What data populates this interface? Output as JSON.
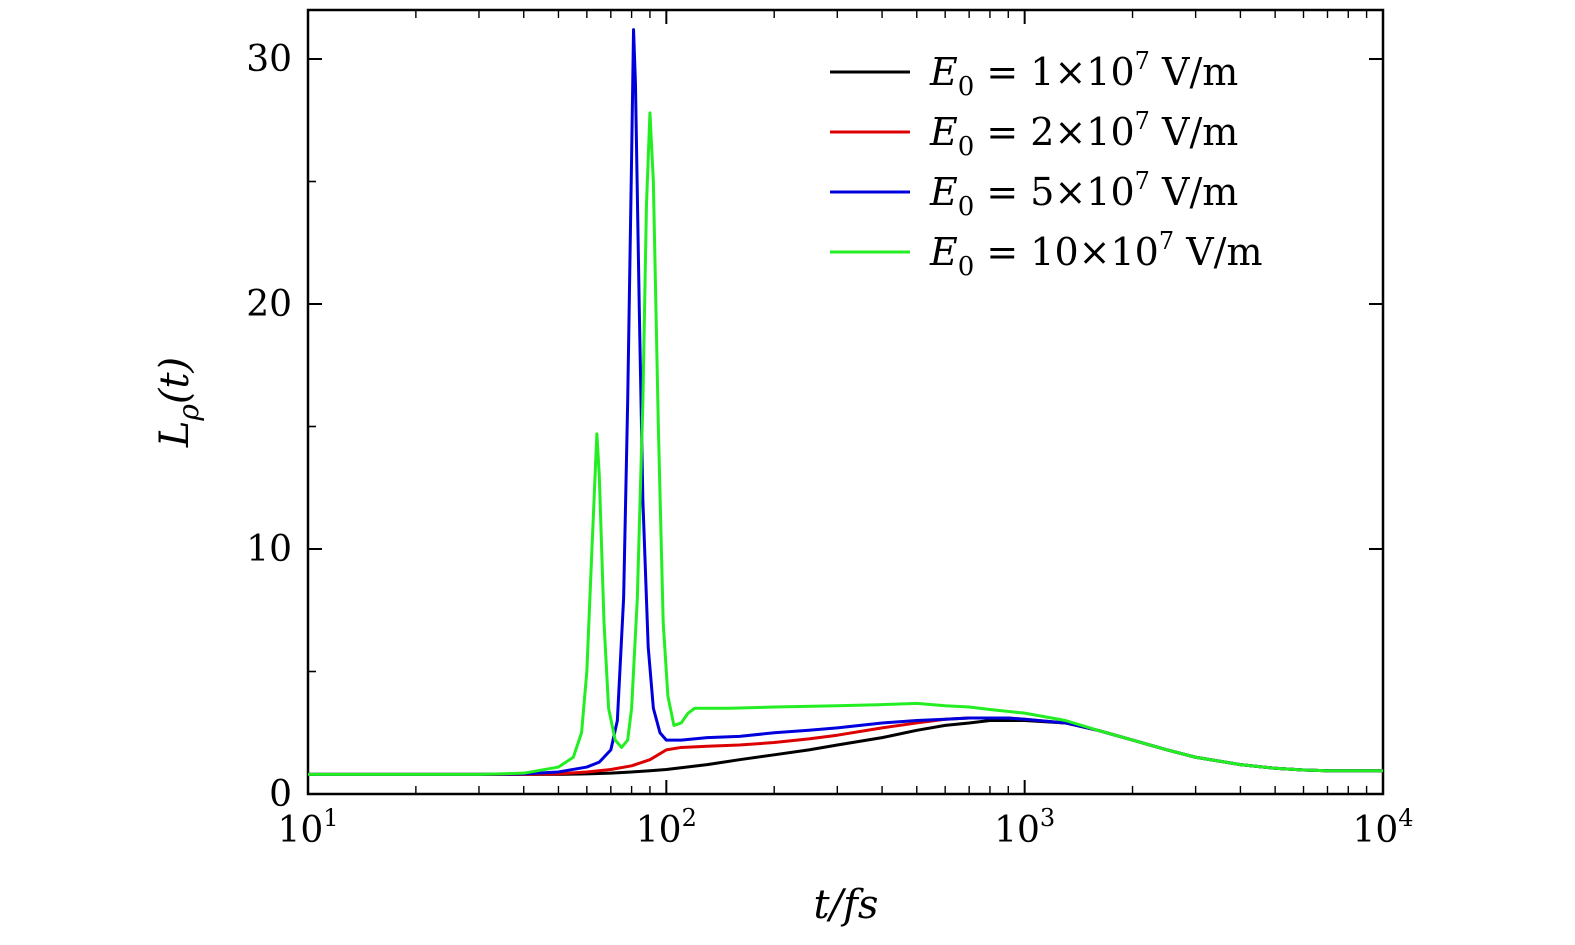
{
  "chart_data": {
    "type": "line",
    "xlabel": "t/fs",
    "ylabel": "Lρ(t)",
    "xscale": "log",
    "xlim": [
      10,
      10000
    ],
    "ylim": [
      0,
      32
    ],
    "yticks": [
      0,
      10,
      20,
      30
    ],
    "xticks": [
      {
        "value": 10,
        "base": "10",
        "exp": "1"
      },
      {
        "value": 100,
        "base": "10",
        "exp": "2"
      },
      {
        "value": 1000,
        "base": "10",
        "exp": "3"
      },
      {
        "value": 10000,
        "base": "10",
        "exp": "4"
      }
    ],
    "grid": false,
    "legend_position": "top-right",
    "series": [
      {
        "name": "E0 = 1×10^7 V/m",
        "label_parts": [
          "1",
          "7"
        ],
        "color": "#000000",
        "points": [
          [
            10,
            0.8
          ],
          [
            20,
            0.8
          ],
          [
            30,
            0.8
          ],
          [
            40,
            0.8
          ],
          [
            50,
            0.8
          ],
          [
            60,
            0.82
          ],
          [
            70,
            0.85
          ],
          [
            80,
            0.9
          ],
          [
            90,
            0.95
          ],
          [
            100,
            1.0
          ],
          [
            130,
            1.2
          ],
          [
            160,
            1.4
          ],
          [
            200,
            1.6
          ],
          [
            250,
            1.8
          ],
          [
            300,
            2.0
          ],
          [
            400,
            2.3
          ],
          [
            500,
            2.6
          ],
          [
            600,
            2.8
          ],
          [
            700,
            2.9
          ],
          [
            800,
            3.0
          ],
          [
            900,
            3.0
          ],
          [
            1000,
            3.0
          ],
          [
            1300,
            2.9
          ],
          [
            1600,
            2.6
          ],
          [
            2000,
            2.2
          ],
          [
            2500,
            1.8
          ],
          [
            3000,
            1.5
          ],
          [
            4000,
            1.2
          ],
          [
            5000,
            1.05
          ],
          [
            6000,
            0.98
          ],
          [
            7000,
            0.95
          ],
          [
            8000,
            0.95
          ],
          [
            10000,
            0.95
          ]
        ]
      },
      {
        "name": "E0 = 2×10^7 V/m",
        "label_parts": [
          "2",
          "7"
        ],
        "color": "#dd0000",
        "points": [
          [
            10,
            0.8
          ],
          [
            30,
            0.8
          ],
          [
            40,
            0.8
          ],
          [
            50,
            0.82
          ],
          [
            60,
            0.9
          ],
          [
            70,
            1.0
          ],
          [
            80,
            1.15
          ],
          [
            90,
            1.4
          ],
          [
            100,
            1.8
          ],
          [
            110,
            1.9
          ],
          [
            130,
            1.95
          ],
          [
            160,
            2.0
          ],
          [
            200,
            2.1
          ],
          [
            250,
            2.25
          ],
          [
            300,
            2.4
          ],
          [
            400,
            2.7
          ],
          [
            500,
            2.9
          ],
          [
            600,
            3.05
          ],
          [
            700,
            3.1
          ],
          [
            800,
            3.1
          ],
          [
            900,
            3.1
          ],
          [
            1000,
            3.05
          ],
          [
            1300,
            2.9
          ],
          [
            1600,
            2.6
          ],
          [
            2000,
            2.2
          ],
          [
            2500,
            1.8
          ],
          [
            3000,
            1.5
          ],
          [
            4000,
            1.2
          ],
          [
            5000,
            1.05
          ],
          [
            6000,
            0.98
          ],
          [
            7000,
            0.95
          ],
          [
            10000,
            0.95
          ]
        ]
      },
      {
        "name": "E0 = 5×10^7 V/m",
        "label_parts": [
          "5",
          "7"
        ],
        "color": "#0000dd",
        "points": [
          [
            10,
            0.8
          ],
          [
            30,
            0.8
          ],
          [
            40,
            0.82
          ],
          [
            50,
            0.9
          ],
          [
            60,
            1.1
          ],
          [
            65,
            1.3
          ],
          [
            70,
            1.8
          ],
          [
            73,
            3.0
          ],
          [
            76,
            8.0
          ],
          [
            78,
            16.0
          ],
          [
            80,
            26.0
          ],
          [
            81,
            31.2
          ],
          [
            82,
            29.0
          ],
          [
            84,
            20.0
          ],
          [
            86,
            12.0
          ],
          [
            89,
            6.0
          ],
          [
            92,
            3.5
          ],
          [
            96,
            2.5
          ],
          [
            100,
            2.2
          ],
          [
            110,
            2.2
          ],
          [
            130,
            2.3
          ],
          [
            160,
            2.35
          ],
          [
            200,
            2.5
          ],
          [
            250,
            2.6
          ],
          [
            300,
            2.7
          ],
          [
            400,
            2.9
          ],
          [
            500,
            3.0
          ],
          [
            600,
            3.05
          ],
          [
            700,
            3.1
          ],
          [
            800,
            3.1
          ],
          [
            900,
            3.1
          ],
          [
            1000,
            3.05
          ],
          [
            1300,
            2.9
          ],
          [
            1600,
            2.6
          ],
          [
            2000,
            2.2
          ],
          [
            2500,
            1.8
          ],
          [
            3000,
            1.5
          ],
          [
            4000,
            1.2
          ],
          [
            5000,
            1.05
          ],
          [
            6000,
            0.98
          ],
          [
            7000,
            0.95
          ],
          [
            10000,
            0.95
          ]
        ]
      },
      {
        "name": "E0 = 10×10^7 V/m",
        "label_parts": [
          "10",
          "7"
        ],
        "color": "#22ee22",
        "points": [
          [
            10,
            0.8
          ],
          [
            30,
            0.8
          ],
          [
            40,
            0.85
          ],
          [
            50,
            1.1
          ],
          [
            55,
            1.5
          ],
          [
            58,
            2.5
          ],
          [
            60,
            5.0
          ],
          [
            62,
            10.0
          ],
          [
            64,
            14.7
          ],
          [
            65,
            13.0
          ],
          [
            67,
            7.0
          ],
          [
            69,
            3.5
          ],
          [
            72,
            2.2
          ],
          [
            75,
            1.9
          ],
          [
            78,
            2.2
          ],
          [
            80,
            3.5
          ],
          [
            83,
            8.0
          ],
          [
            86,
            16.0
          ],
          [
            88,
            24.0
          ],
          [
            90,
            27.8
          ],
          [
            92,
            25.0
          ],
          [
            95,
            15.0
          ],
          [
            98,
            7.0
          ],
          [
            101,
            4.0
          ],
          [
            105,
            2.8
          ],
          [
            110,
            2.9
          ],
          [
            115,
            3.3
          ],
          [
            120,
            3.5
          ],
          [
            150,
            3.5
          ],
          [
            200,
            3.55
          ],
          [
            300,
            3.6
          ],
          [
            400,
            3.65
          ],
          [
            500,
            3.7
          ],
          [
            600,
            3.6
          ],
          [
            700,
            3.55
          ],
          [
            800,
            3.45
          ],
          [
            1000,
            3.3
          ],
          [
            1300,
            3.0
          ],
          [
            1600,
            2.6
          ],
          [
            2000,
            2.2
          ],
          [
            2500,
            1.8
          ],
          [
            3000,
            1.5
          ],
          [
            4000,
            1.2
          ],
          [
            5000,
            1.05
          ],
          [
            6000,
            0.98
          ],
          [
            7000,
            0.95
          ],
          [
            10000,
            0.95
          ]
        ]
      }
    ]
  }
}
